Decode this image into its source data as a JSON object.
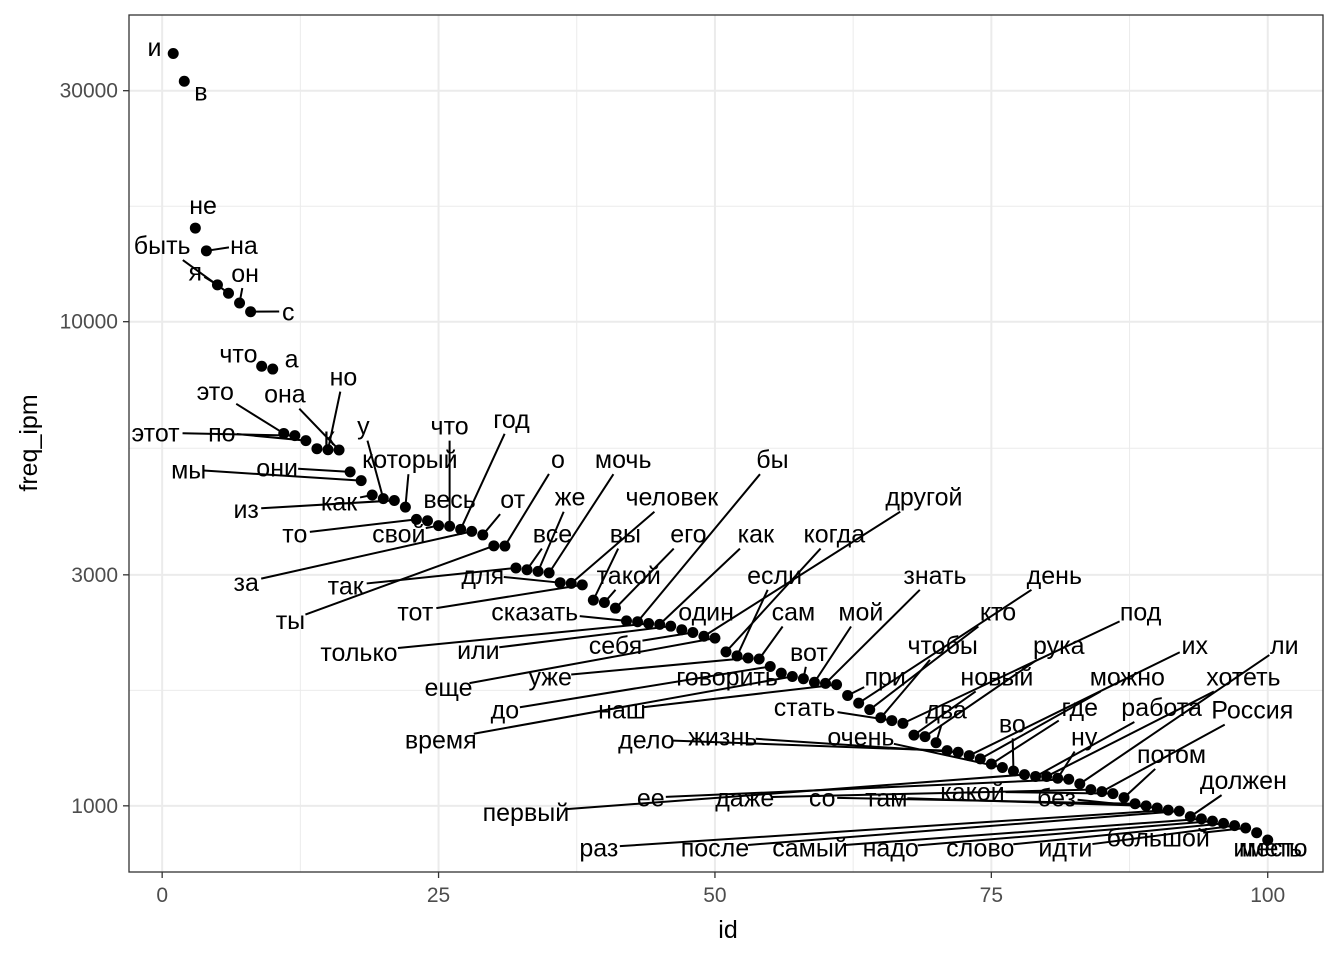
{
  "chart_data": {
    "type": "scatter",
    "xlabel": "id",
    "ylabel": "freq_ipm",
    "x_scale": "linear",
    "y_scale": "log10",
    "xlim": [
      -3,
      105
    ],
    "ylim": [
      730,
      43000
    ],
    "x_ticks": [
      {
        "value": 0,
        "label": "0"
      },
      {
        "value": 25,
        "label": "25"
      },
      {
        "value": 50,
        "label": "50"
      },
      {
        "value": 75,
        "label": "75"
      },
      {
        "value": 100,
        "label": "100"
      }
    ],
    "y_ticks": [
      {
        "value": 1000,
        "label": "1000"
      },
      {
        "value": 3000,
        "label": "3000"
      },
      {
        "value": 10000,
        "label": "10000"
      },
      {
        "value": 30000,
        "label": "30000"
      }
    ],
    "y_minor_ticks": [
      1732,
      5477,
      17320
    ],
    "colors": {
      "point": "#000000",
      "grid": "#ebebeb",
      "panel_border": "#333333"
    },
    "points": [
      {
        "id": 1,
        "word": "и",
        "freq": 35801,
        "lx": -0.7,
        "ly": 36900
      },
      {
        "id": 2,
        "word": "в",
        "freq": 31374,
        "lx": 3.5,
        "ly": 29900
      },
      {
        "id": 3,
        "word": "не",
        "freq": 15609,
        "lx": 3.7,
        "ly": 17400
      },
      {
        "id": 4,
        "word": "на",
        "freq": 14008,
        "lx": 7.4,
        "ly": 14400
      },
      {
        "id": 5,
        "word": "я",
        "freq": 11915,
        "lx": 3.0,
        "ly": 12700
      },
      {
        "id": 6,
        "word": "быть",
        "freq": 11449,
        "lx": 0.0,
        "ly": 14400
      },
      {
        "id": 7,
        "word": "он",
        "freq": 10930,
        "lx": 7.5,
        "ly": 12600
      },
      {
        "id": 8,
        "word": "с",
        "freq": 10486,
        "lx": 11.4,
        "ly": 10500
      },
      {
        "id": 9,
        "word": "что",
        "freq": 8090,
        "lx": 6.9,
        "ly": 8600
      },
      {
        "id": 10,
        "word": "а",
        "freq": 7983,
        "lx": 11.7,
        "ly": 8400
      },
      {
        "id": 11,
        "word": "это",
        "freq": 5877,
        "lx": 4.8,
        "ly": 7200
      },
      {
        "id": 12,
        "word": "этот",
        "freq": 5817,
        "lx": -0.6,
        "ly": 5900
      },
      {
        "id": 13,
        "word": "по",
        "freq": 5680,
        "lx": 5.4,
        "ly": 5900
      },
      {
        "id": 14,
        "word": "к",
        "freq": 5466,
        "lx": 15.1,
        "ly": 5800
      },
      {
        "id": 15,
        "word": "но",
        "freq": 5438,
        "lx": 16.4,
        "ly": 7700
      },
      {
        "id": 16,
        "word": "она",
        "freq": 5432,
        "lx": 11.1,
        "ly": 7100
      },
      {
        "id": 17,
        "word": "они",
        "freq": 4896,
        "lx": 10.4,
        "ly": 5000
      },
      {
        "id": 18,
        "word": "мы",
        "freq": 4695,
        "lx": 2.4,
        "ly": 4950
      },
      {
        "id": 19,
        "word": "как",
        "freq": 4385,
        "lx": 16.0,
        "ly": 4250
      },
      {
        "id": 20,
        "word": "у",
        "freq": 4310,
        "lx": 18.2,
        "ly": 6100
      },
      {
        "id": 21,
        "word": "из",
        "freq": 4273,
        "lx": 7.6,
        "ly": 4100
      },
      {
        "id": 22,
        "word": "который",
        "freq": 4140,
        "lx": 22.4,
        "ly": 5200
      },
      {
        "id": 23,
        "word": "то",
        "freq": 3906,
        "lx": 12.0,
        "ly": 3650
      },
      {
        "id": 24,
        "word": "весь",
        "freq": 3880,
        "lx": 26.0,
        "ly": 4300
      },
      {
        "id": 25,
        "word": "свой",
        "freq": 3792,
        "lx": 21.4,
        "ly": 3650
      },
      {
        "id": 26,
        "word": "что",
        "freq": 3780,
        "lx": 26.0,
        "ly": 6100
      },
      {
        "id": 27,
        "word": "год",
        "freq": 3725,
        "lx": 31.6,
        "ly": 6300
      },
      {
        "id": 28,
        "word": "за",
        "freq": 3689,
        "lx": 7.6,
        "ly": 2900
      },
      {
        "id": 29,
        "word": "от",
        "freq": 3627,
        "lx": 31.7,
        "ly": 4300
      },
      {
        "id": 30,
        "word": "ты",
        "freq": 3444,
        "lx": 11.6,
        "ly": 2420
      },
      {
        "id": 31,
        "word": "о",
        "freq": 3440,
        "lx": 35.8,
        "ly": 5200
      },
      {
        "id": 32,
        "word": "так",
        "freq": 3100,
        "lx": 16.6,
        "ly": 2850
      },
      {
        "id": 33,
        "word": "все",
        "freq": 3074,
        "lx": 35.3,
        "ly": 3650
      },
      {
        "id": 34,
        "word": "же",
        "freq": 3050,
        "lx": 36.9,
        "ly": 4350
      },
      {
        "id": 35,
        "word": "мочь",
        "freq": 3028,
        "lx": 41.7,
        "ly": 5200
      },
      {
        "id": 36,
        "word": "для",
        "freq": 2890,
        "lx": 29.0,
        "ly": 3000
      },
      {
        "id": 37,
        "word": "человек",
        "freq": 2881,
        "lx": 46.1,
        "ly": 4350
      },
      {
        "id": 38,
        "word": "тот",
        "freq": 2860,
        "lx": 22.9,
        "ly": 2520
      },
      {
        "id": 39,
        "word": "вы",
        "freq": 2660,
        "lx": 41.9,
        "ly": 3650
      },
      {
        "id": 40,
        "word": "такой",
        "freq": 2630,
        "lx": 42.2,
        "ly": 3000
      },
      {
        "id": 41,
        "word": "его",
        "freq": 2560,
        "lx": 47.6,
        "ly": 3650
      },
      {
        "id": 42,
        "word": "сказать",
        "freq": 2410,
        "lx": 33.7,
        "ly": 2520
      },
      {
        "id": 43,
        "word": "бы",
        "freq": 2400,
        "lx": 55.2,
        "ly": 5200
      },
      {
        "id": 44,
        "word": "только",
        "freq": 2380,
        "lx": 17.8,
        "ly": 2080
      },
      {
        "id": 45,
        "word": "как",
        "freq": 2370,
        "lx": 53.7,
        "ly": 3650
      },
      {
        "id": 46,
        "word": "или",
        "freq": 2350,
        "lx": 28.6,
        "ly": 2100
      },
      {
        "id": 47,
        "word": "один",
        "freq": 2310,
        "lx": 49.2,
        "ly": 2520
      },
      {
        "id": 48,
        "word": "себя",
        "freq": 2280,
        "lx": 41.0,
        "ly": 2150
      },
      {
        "id": 49,
        "word": "другой",
        "freq": 2240,
        "lx": 68.9,
        "ly": 4350
      },
      {
        "id": 50,
        "word": "еще",
        "freq": 2220,
        "lx": 25.9,
        "ly": 1760
      },
      {
        "id": 51,
        "word": "когда",
        "freq": 2080,
        "lx": 60.8,
        "ly": 3650
      },
      {
        "id": 52,
        "word": "если",
        "freq": 2040,
        "lx": 55.4,
        "ly": 3000
      },
      {
        "id": 53,
        "word": "уже",
        "freq": 2020,
        "lx": 35.1,
        "ly": 1850
      },
      {
        "id": 54,
        "word": "сам",
        "freq": 2010,
        "lx": 57.1,
        "ly": 2520
      },
      {
        "id": 55,
        "word": "до",
        "freq": 1940,
        "lx": 31.0,
        "ly": 1580
      },
      {
        "id": 56,
        "word": "говорить",
        "freq": 1880,
        "lx": 51.1,
        "ly": 1850
      },
      {
        "id": 57,
        "word": "время",
        "freq": 1850,
        "lx": 25.2,
        "ly": 1370
      },
      {
        "id": 58,
        "word": "вот",
        "freq": 1830,
        "lx": 58.5,
        "ly": 2080
      },
      {
        "id": 59,
        "word": "мой",
        "freq": 1800,
        "lx": 63.2,
        "ly": 2520
      },
      {
        "id": 60,
        "word": "знать",
        "freq": 1790,
        "lx": 69.9,
        "ly": 3000
      },
      {
        "id": 61,
        "word": "наш",
        "freq": 1780,
        "lx": 41.6,
        "ly": 1580
      },
      {
        "id": 62,
        "word": "при",
        "freq": 1690,
        "lx": 65.4,
        "ly": 1850
      },
      {
        "id": 63,
        "word": "день",
        "freq": 1630,
        "lx": 80.7,
        "ly": 3000
      },
      {
        "id": 64,
        "word": "кто",
        "freq": 1580,
        "lx": 75.6,
        "ly": 2520
      },
      {
        "id": 65,
        "word": "чтобы",
        "freq": 1520,
        "lx": 70.6,
        "ly": 2150
      },
      {
        "id": 66,
        "word": "стать",
        "freq": 1500,
        "lx": 58.1,
        "ly": 1600
      },
      {
        "id": 67,
        "word": "под",
        "freq": 1480,
        "lx": 88.5,
        "ly": 2520
      },
      {
        "id": 68,
        "word": "новый",
        "freq": 1400,
        "lx": 75.5,
        "ly": 1850
      },
      {
        "id": 69,
        "word": "рука",
        "freq": 1390,
        "lx": 81.1,
        "ly": 2150
      },
      {
        "id": 70,
        "word": "два",
        "freq": 1350,
        "lx": 70.9,
        "ly": 1580
      },
      {
        "id": 71,
        "word": "дело",
        "freq": 1300,
        "lx": 43.8,
        "ly": 1370
      },
      {
        "id": 72,
        "word": "жизнь",
        "freq": 1290,
        "lx": 50.7,
        "ly": 1390
      },
      {
        "id": 73,
        "word": "их",
        "freq": 1270,
        "lx": 93.4,
        "ly": 2150
      },
      {
        "id": 74,
        "word": "можно",
        "freq": 1250,
        "lx": 87.3,
        "ly": 1850
      },
      {
        "id": 75,
        "word": "где",
        "freq": 1220,
        "lx": 83.0,
        "ly": 1600
      },
      {
        "id": 76,
        "word": "очень",
        "freq": 1200,
        "lx": 63.2,
        "ly": 1390
      },
      {
        "id": 77,
        "word": "во",
        "freq": 1180,
        "lx": 76.9,
        "ly": 1480
      },
      {
        "id": 78,
        "word": "первый",
        "freq": 1160,
        "lx": 32.9,
        "ly": 970
      },
      {
        "id": 79,
        "word": "работа",
        "freq": 1150,
        "lx": 90.4,
        "ly": 1600
      },
      {
        "id": 80,
        "word": "хотеть",
        "freq": 1150,
        "lx": 97.8,
        "ly": 1850
      },
      {
        "id": 81,
        "word": "ну",
        "freq": 1140,
        "lx": 83.4,
        "ly": 1390
      },
      {
        "id": 82,
        "word": "ее",
        "freq": 1135,
        "lx": 44.2,
        "ly": 1040
      },
      {
        "id": 83,
        "word": "ли",
        "freq": 1110,
        "lx": 101.5,
        "ly": 2150
      },
      {
        "id": 84,
        "word": "даже",
        "freq": 1080,
        "lx": 52.7,
        "ly": 1040
      },
      {
        "id": 85,
        "word": "Россия",
        "freq": 1070,
        "lx": 98.6,
        "ly": 1580
      },
      {
        "id": 86,
        "word": "какой",
        "freq": 1060,
        "lx": 73.3,
        "ly": 1070
      },
      {
        "id": 87,
        "word": "потом",
        "freq": 1040,
        "lx": 91.3,
        "ly": 1280
      },
      {
        "id": 88,
        "word": "со",
        "freq": 1010,
        "lx": 59.7,
        "ly": 1040
      },
      {
        "id": 89,
        "word": "там",
        "freq": 1000,
        "lx": 65.5,
        "ly": 1040
      },
      {
        "id": 90,
        "word": "без",
        "freq": 990,
        "lx": 80.9,
        "ly": 1040
      },
      {
        "id": 91,
        "word": "раз",
        "freq": 980,
        "lx": 39.5,
        "ly": 820
      },
      {
        "id": 92,
        "word": "после",
        "freq": 975,
        "lx": 50.0,
        "ly": 820
      },
      {
        "id": 93,
        "word": "должен",
        "freq": 950,
        "lx": 97.8,
        "ly": 1130
      },
      {
        "id": 94,
        "word": "самый",
        "freq": 940,
        "lx": 58.6,
        "ly": 820
      },
      {
        "id": 95,
        "word": "надо",
        "freq": 930,
        "lx": 65.9,
        "ly": 820
      },
      {
        "id": 96,
        "word": "слово",
        "freq": 920,
        "lx": 74.0,
        "ly": 820
      },
      {
        "id": 97,
        "word": "идти",
        "freq": 910,
        "lx": 81.7,
        "ly": 820
      },
      {
        "id": 98,
        "word": "большой",
        "freq": 900,
        "lx": 90.1,
        "ly": 860
      },
      {
        "id": 99,
        "word": "место",
        "freq": 880,
        "lx": 100.5,
        "ly": 820
      },
      {
        "id": 100,
        "word": "иметь",
        "freq": 850,
        "lx": 100.0,
        "ly": 820
      }
    ]
  }
}
